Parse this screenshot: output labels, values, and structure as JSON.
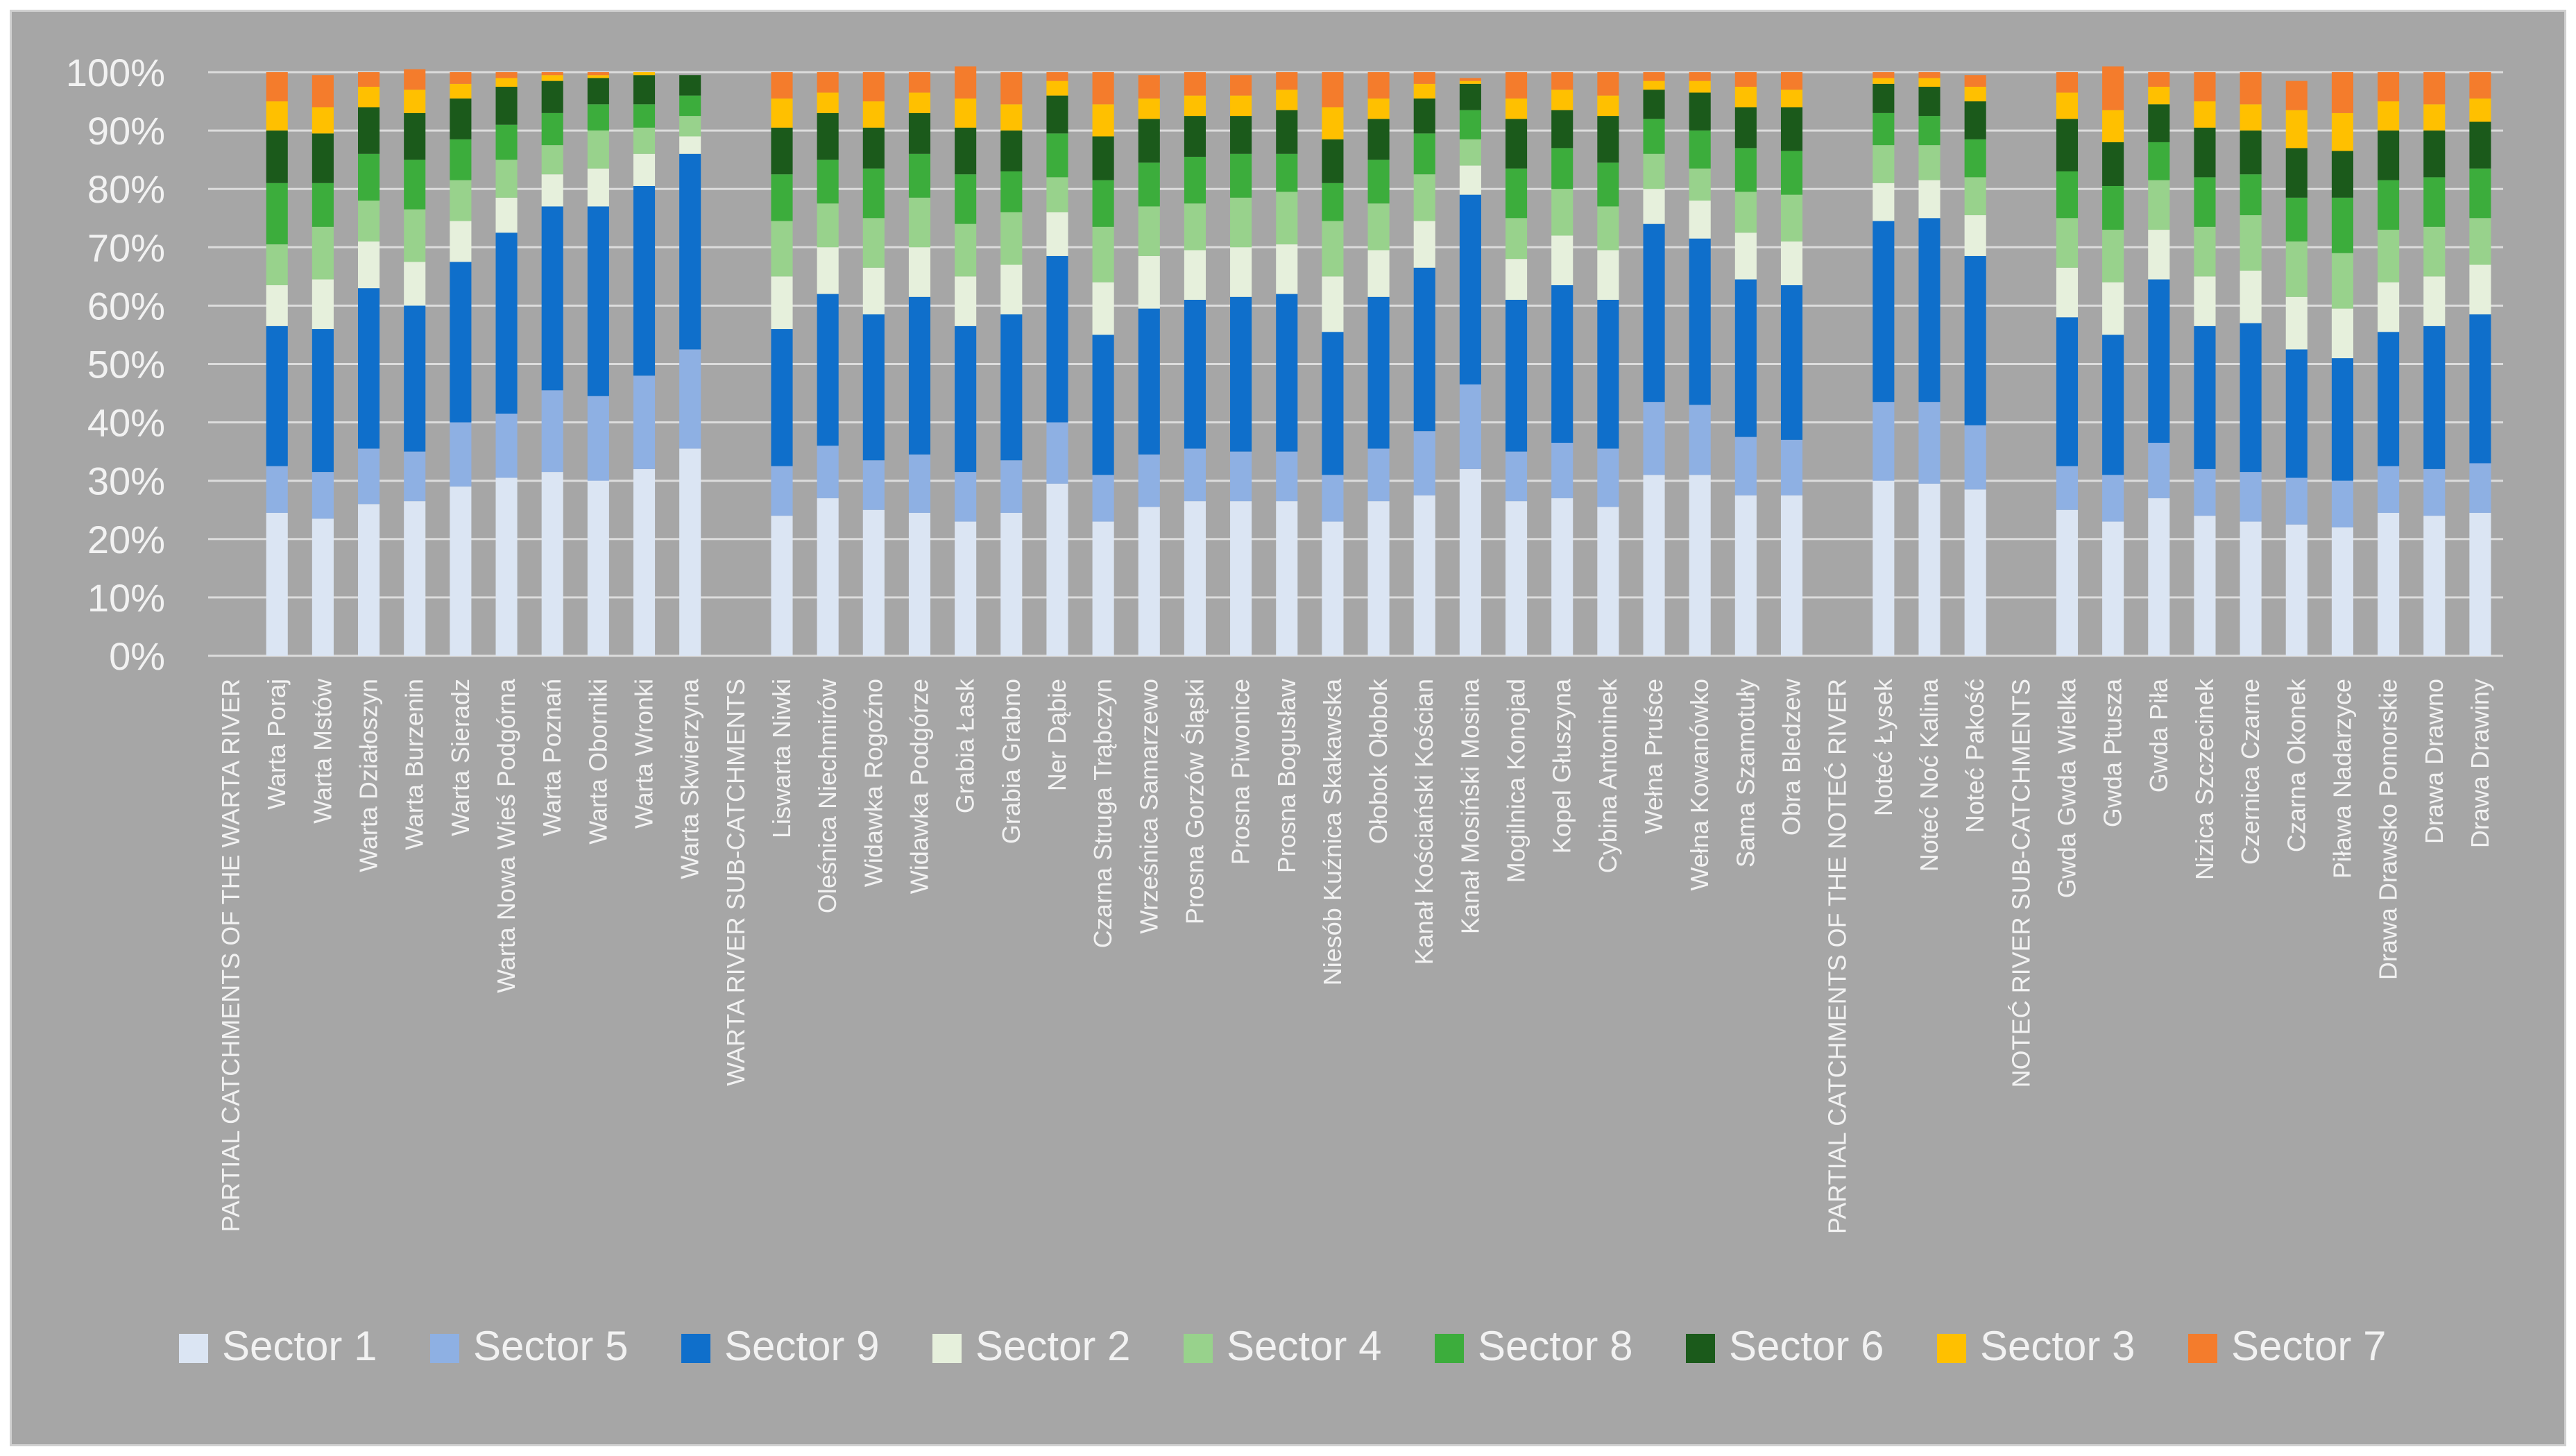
{
  "chart_data": {
    "type": "bar",
    "stacked": true,
    "normalized": true,
    "ylim": [
      0,
      100
    ],
    "yticks": [
      "0%",
      "10%",
      "20%",
      "30%",
      "40%",
      "50%",
      "60%",
      "70%",
      "80%",
      "90%",
      "100%"
    ],
    "grid": true,
    "legend_position": "bottom",
    "categories": [
      "PARTIAL CATCHMENTS OF THE WARTA RIVER",
      "Warta Poraj",
      "Warta Mstów",
      "Warta Działoszyn",
      "Warta Burzenin",
      "Warta Sieradz",
      "Warta Nowa Wieś Podgórna",
      "Warta Poznań",
      "Warta Oborniki",
      "Warta Wronki",
      "Warta Skwierzyna",
      "WARTA RIVER SUB-CATCHMENTS",
      "Liswarta Niwki",
      "Oleśnica Niechmirów",
      "Widawka Rogoźno",
      "Widawka Podgórze",
      "Grabia Łask",
      "Grabia Grabno",
      "Ner Dąbie",
      "Czarna Struga Trąbczyn",
      "Wrześnica Samarzewo",
      "Prosna Gorzów Śląski",
      "Prosna Piwonice",
      "Prosna Bogusław",
      "Niesób Kuźnica Skakawska",
      "Ołobok Ołobok",
      "Kanał Kościański Kościan",
      "Kanał Mosiński Mosina",
      "Mogilnica Konojad",
      "Kopel Głuszyna",
      "Cybina Antoninek",
      "Wełna Pruśce",
      "Wełna Kowanówko",
      "Sama Szamotuły",
      "Obra Bledzew",
      "PARTIAL CATCHMENTS OF THE NOTEĆ RIVER",
      "Noteć Łysek",
      "Noteć Noć Kalina",
      "Noteć Pakość",
      "NOTEĆ RIVER SUB-CATCHMENTS",
      "Gwda Gwda Wielka",
      "Gwda Ptusza",
      "Gwda Piła",
      "Nizica Szczecinek",
      "Czernica Czarne",
      "Czarna Okonek",
      "Piława Nadarzyce",
      "Drawa Drawsko Pomorskie",
      "Drawa Drawno",
      "Drawa Drawiny"
    ],
    "series": [
      {
        "name": "Sector 1",
        "color": "#dbe5f3",
        "values": [
          null,
          24.5,
          23.5,
          26,
          26.5,
          29,
          30.5,
          31.5,
          30,
          32,
          35.5,
          null,
          24,
          27,
          25,
          24.5,
          23,
          24.5,
          29.5,
          23,
          25.5,
          26.5,
          26.5,
          26.5,
          23,
          26.5,
          27.5,
          32,
          26.5,
          27,
          25.5,
          31,
          31,
          27.5,
          27.5,
          null,
          30,
          29.5,
          28.5,
          null,
          25,
          23,
          27,
          24,
          23,
          22.5,
          22,
          24.5,
          24,
          24.5
        ]
      },
      {
        "name": "Sector 5",
        "color": "#8eb0e3",
        "values": [
          null,
          8,
          8,
          9.5,
          8.5,
          11,
          11,
          14,
          14.5,
          16,
          17,
          null,
          8.5,
          9,
          8.5,
          10,
          8.5,
          9,
          10.5,
          8,
          9,
          9,
          8.5,
          8.5,
          8,
          9,
          11,
          14.5,
          8.5,
          9.5,
          10,
          12.5,
          12,
          10,
          9.5,
          null,
          13.5,
          14,
          11,
          null,
          7.5,
          8,
          9.5,
          8,
          8.5,
          8,
          8,
          8,
          8,
          8.5
        ]
      },
      {
        "name": "Sector 9",
        "color": "#0f6fcb",
        "values": [
          null,
          24,
          24.5,
          27.5,
          25,
          27.5,
          31,
          31.5,
          32.5,
          32.5,
          33.5,
          null,
          23.5,
          26,
          25,
          27,
          25,
          25,
          28.5,
          24,
          25,
          25.5,
          26.5,
          27,
          24.5,
          26,
          28,
          32.5,
          26,
          27,
          25.5,
          30.5,
          28.5,
          27,
          26.5,
          null,
          31,
          31.5,
          29,
          null,
          25.5,
          24,
          28,
          24.5,
          25.5,
          22,
          21,
          23,
          24.5,
          25.5
        ]
      },
      {
        "name": "Sector 2",
        "color": "#e6f0dc",
        "values": [
          null,
          7,
          8.5,
          8,
          7.5,
          7,
          6,
          5.5,
          6.5,
          5.5,
          3,
          null,
          9,
          8,
          8,
          8.5,
          8.5,
          8.5,
          7.5,
          9,
          9,
          8.5,
          8.5,
          8.5,
          9.5,
          8,
          8,
          5,
          7,
          8.5,
          8.5,
          6,
          6.5,
          8,
          7.5,
          null,
          6.5,
          6.5,
          7,
          null,
          8.5,
          9,
          8.5,
          8.5,
          9,
          9,
          8.5,
          8.5,
          8.5,
          8.5
        ]
      },
      {
        "name": "Sector 4",
        "color": "#98d28c",
        "values": [
          null,
          7,
          9,
          7,
          9,
          7,
          6.5,
          5,
          6.5,
          4.5,
          3.5,
          null,
          9.5,
          7.5,
          8.5,
          8.5,
          9,
          9,
          6,
          9.5,
          8.5,
          8,
          8.5,
          9,
          9.5,
          8,
          8,
          4.5,
          7,
          8,
          7.5,
          6,
          5.5,
          7,
          8,
          null,
          6.5,
          6,
          6.5,
          null,
          8.5,
          9,
          8.5,
          8.5,
          9.5,
          9.5,
          9.5,
          9,
          8.5,
          8
        ]
      },
      {
        "name": "Sector 8",
        "color": "#3cad3c",
        "values": [
          null,
          10.5,
          7.5,
          8,
          8.5,
          7,
          6,
          5.5,
          4.5,
          4,
          3.5,
          null,
          8,
          7.5,
          8.5,
          7.5,
          8.5,
          7,
          7.5,
          8,
          7.5,
          8,
          7.5,
          6.5,
          6.5,
          7.5,
          7,
          5,
          8.5,
          7,
          7.5,
          6,
          6.5,
          7.5,
          7.5,
          null,
          5.5,
          5,
          6.5,
          null,
          8,
          7.5,
          6.5,
          8.5,
          7,
          7.5,
          9.5,
          8.5,
          8.5,
          8.5
        ]
      },
      {
        "name": "Sector 6",
        "color": "#1b5a1b",
        "values": [
          null,
          9,
          8.5,
          8,
          8,
          7,
          6.5,
          5.5,
          4.5,
          5,
          3.5,
          null,
          8,
          8,
          7,
          7,
          8,
          7,
          6.5,
          7.5,
          7.5,
          7,
          6.5,
          7.5,
          7.5,
          7,
          6,
          4.5,
          8.5,
          6.5,
          8,
          5,
          6.5,
          7,
          7.5,
          null,
          5,
          5,
          6.5,
          null,
          9,
          7.5,
          6.5,
          8.5,
          7.5,
          8.5,
          8,
          8.5,
          8,
          8
        ]
      },
      {
        "name": "Sector 3",
        "color": "#ffc000",
        "values": [
          null,
          5,
          4.5,
          3.5,
          4,
          2.5,
          1.5,
          1,
          0.5,
          0.5,
          0,
          null,
          5,
          3.5,
          4.5,
          3.5,
          5,
          4.5,
          2.5,
          5.5,
          3.5,
          3.5,
          3.5,
          3.5,
          5.5,
          3.5,
          2.5,
          0.5,
          3.5,
          3.5,
          3.5,
          1.5,
          2,
          3.5,
          3,
          null,
          1,
          1.5,
          2.5,
          null,
          4.5,
          5.5,
          3,
          4.5,
          4.5,
          6.5,
          6.5,
          5,
          4.5,
          4
        ]
      },
      {
        "name": "Sector 7",
        "color": "#f47c2c",
        "values": [
          null,
          5,
          5.5,
          2.5,
          3.5,
          2,
          1,
          0.5,
          0.5,
          0,
          0,
          null,
          4.5,
          3.5,
          5,
          3.5,
          5.5,
          5.5,
          1.5,
          5.5,
          4,
          4,
          3.5,
          3,
          6,
          4.5,
          2,
          0.5,
          4.5,
          3,
          4,
          1.5,
          1.5,
          2.5,
          3,
          null,
          1,
          1,
          2,
          null,
          3.5,
          7.5,
          2.5,
          5,
          5.5,
          5,
          7,
          5,
          5.5,
          4.5
        ]
      }
    ]
  }
}
